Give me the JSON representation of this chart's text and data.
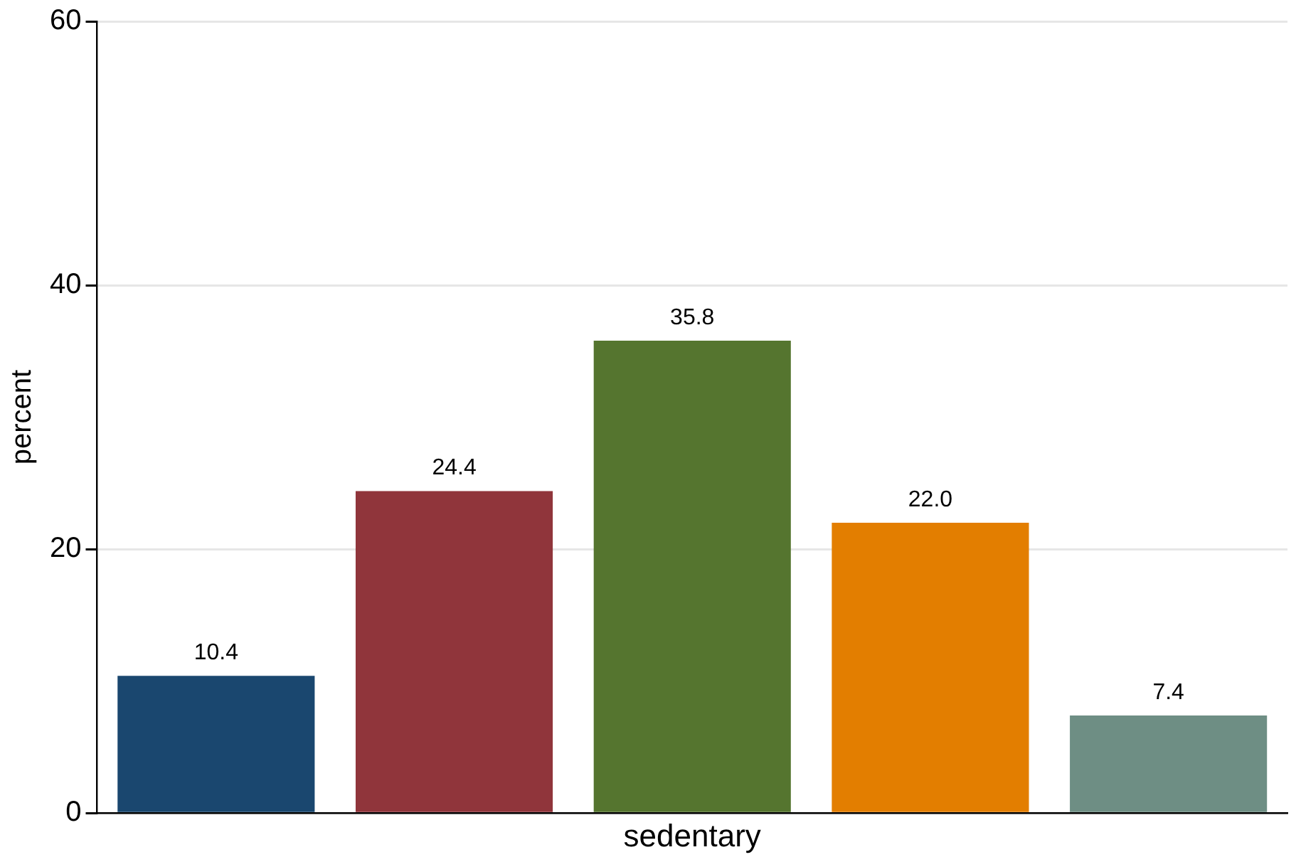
{
  "chart_data": {
    "type": "bar",
    "xlabel": "sedentary",
    "ylabel": "percent",
    "categories": [
      null,
      null,
      null,
      null,
      null
    ],
    "values": [
      10.4,
      24.4,
      35.8,
      22.0,
      7.4
    ],
    "colors": [
      "#1a476f",
      "#90353b",
      "#55752f",
      "#e37e00",
      "#6e8e84"
    ],
    "value_labels": [
      "10.4",
      "24.4",
      "35.8",
      "22.0",
      "7.4"
    ],
    "ylim": [
      0,
      60
    ],
    "yticks": [
      0,
      20,
      40,
      60
    ],
    "grid": "y",
    "legend": false
  }
}
